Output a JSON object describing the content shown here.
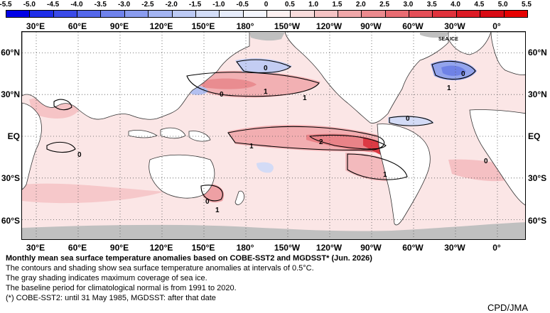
{
  "colorbar": {
    "labels": [
      "-5.5",
      "-5.0",
      "-4.5",
      "-4.0",
      "-3.5",
      "-3.0",
      "-2.5",
      "-2.0",
      "-1.5",
      "-1.0",
      "-0.5",
      "0",
      "0.5",
      "1.0",
      "1.5",
      "2.0",
      "2.5",
      "3.0",
      "3.5",
      "4.0",
      "4.5",
      "5.0",
      "5.5"
    ],
    "colors": [
      "#0000e6",
      "#1f2ee8",
      "#3a4ae8",
      "#5467ea",
      "#6f82ec",
      "#8a9cef",
      "#a3b4f2",
      "#bccaf5",
      "#d3ddf8",
      "#e6ecfb",
      "#f4f6fd",
      "#fdf1f1",
      "#f9dcdc",
      "#f5c3c4",
      "#f0a7a9",
      "#ec8a8e",
      "#e86c72",
      "#e44e57",
      "#e0323c",
      "#dc1a25",
      "#d80a14",
      "#e60000"
    ]
  },
  "map": {
    "lon_labels": [
      "30°E",
      "60°E",
      "90°E",
      "120°E",
      "150°E",
      "180°",
      "150°W",
      "120°W",
      "90°W",
      "60°W",
      "30°W",
      "0°"
    ],
    "lat_labels": [
      "60°N",
      "30°N",
      "EQ",
      "30°S",
      "60°S"
    ],
    "sea_ice_label": "SEA ICE",
    "contour_labels": [
      "0",
      "0",
      "0",
      "1",
      "1",
      "0",
      "0",
      "2",
      "1",
      "0",
      "1",
      "0",
      "1",
      "1"
    ]
  },
  "caption": {
    "title": "Monthly mean sea surface temperature anomalies based on COBE-SST2 and MGDSST* (Jun. 2026)",
    "line1": "The contours and shading show sea surface temperature anomalies at intervals of 0.5°C.",
    "line2": "The gray shading indicates maximum coverage of sea ice.",
    "line3": "The baseline period for climatological normal is from 1991 to 2020.",
    "line4": "(*) COBE-SST2: until 31 May 1985, MGDSST: after that date"
  },
  "credit": "CPD/JMA",
  "colors": {
    "land": "#ffffff",
    "sea_ice": "#c0c0c0",
    "warm": "#f3b6b8",
    "cool": "#b7c3f0"
  }
}
